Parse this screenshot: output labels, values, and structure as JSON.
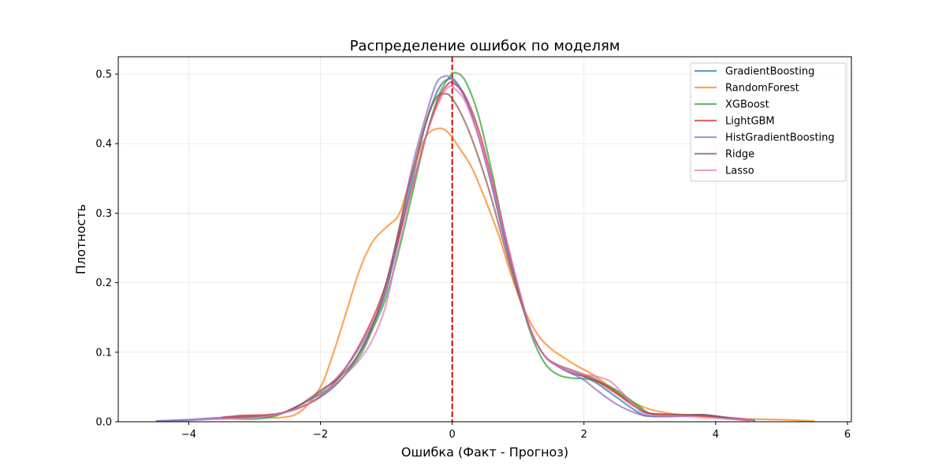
{
  "chart_data": {
    "type": "line",
    "title": "Распределение ошибок по моделям",
    "xlabel": "Ошибка (Факт - Прогноз)",
    "ylabel": "Плотность",
    "xlim": [
      -5.07,
      6.06
    ],
    "ylim": [
      0,
      0.525
    ],
    "xticks": [
      -4,
      -2,
      0,
      2,
      4,
      6
    ],
    "xtick_labels": [
      "−4",
      "−2",
      "0",
      "2",
      "4",
      "6"
    ],
    "yticks": [
      0.0,
      0.1,
      0.2,
      0.3,
      0.4,
      0.5
    ],
    "ytick_labels": [
      "0.0",
      "0.1",
      "0.2",
      "0.3",
      "0.4",
      "0.5"
    ],
    "grid": true,
    "legend_position": "top-right",
    "reference_line": {
      "x": 0,
      "color": "#e00000",
      "style": "dashed"
    },
    "series": [
      {
        "name": "GradientBoosting",
        "color": "#1f77b4",
        "points": [
          [
            -4.5,
            0.001
          ],
          [
            -4.0,
            0.003
          ],
          [
            -3.5,
            0.006
          ],
          [
            -3.0,
            0.008
          ],
          [
            -2.6,
            0.012
          ],
          [
            -2.2,
            0.025
          ],
          [
            -1.8,
            0.05
          ],
          [
            -1.5,
            0.085
          ],
          [
            -1.2,
            0.14
          ],
          [
            -1.0,
            0.19
          ],
          [
            -0.8,
            0.27
          ],
          [
            -0.6,
            0.35
          ],
          [
            -0.4,
            0.43
          ],
          [
            -0.2,
            0.48
          ],
          [
            -0.05,
            0.493
          ],
          [
            0.05,
            0.49
          ],
          [
            0.2,
            0.465
          ],
          [
            0.4,
            0.41
          ],
          [
            0.6,
            0.34
          ],
          [
            0.8,
            0.26
          ],
          [
            1.0,
            0.19
          ],
          [
            1.2,
            0.13
          ],
          [
            1.4,
            0.095
          ],
          [
            1.6,
            0.08
          ],
          [
            1.8,
            0.07
          ],
          [
            2.0,
            0.065
          ],
          [
            2.2,
            0.055
          ],
          [
            2.5,
            0.035
          ],
          [
            2.8,
            0.015
          ],
          [
            3.0,
            0.008
          ],
          [
            3.5,
            0.008
          ],
          [
            3.8,
            0.01
          ],
          [
            4.2,
            0.005
          ],
          [
            4.6,
            0.002
          ]
        ]
      },
      {
        "name": "RandomForest",
        "color": "#ff7f0e",
        "points": [
          [
            -3.5,
            0.005
          ],
          [
            -3.0,
            0.007
          ],
          [
            -2.6,
            0.006
          ],
          [
            -2.3,
            0.015
          ],
          [
            -2.0,
            0.05
          ],
          [
            -1.8,
            0.1
          ],
          [
            -1.6,
            0.16
          ],
          [
            -1.4,
            0.22
          ],
          [
            -1.2,
            0.26
          ],
          [
            -1.0,
            0.28
          ],
          [
            -0.8,
            0.3
          ],
          [
            -0.6,
            0.36
          ],
          [
            -0.4,
            0.41
          ],
          [
            -0.2,
            0.422
          ],
          [
            -0.05,
            0.415
          ],
          [
            0.1,
            0.395
          ],
          [
            0.3,
            0.365
          ],
          [
            0.5,
            0.32
          ],
          [
            0.7,
            0.27
          ],
          [
            0.9,
            0.21
          ],
          [
            1.1,
            0.16
          ],
          [
            1.3,
            0.125
          ],
          [
            1.5,
            0.105
          ],
          [
            1.7,
            0.092
          ],
          [
            1.9,
            0.08
          ],
          [
            2.1,
            0.07
          ],
          [
            2.4,
            0.05
          ],
          [
            2.7,
            0.03
          ],
          [
            3.0,
            0.018
          ],
          [
            3.3,
            0.012
          ],
          [
            3.6,
            0.009
          ],
          [
            4.0,
            0.007
          ],
          [
            4.5,
            0.004
          ],
          [
            5.0,
            0.003
          ],
          [
            5.5,
            0.001
          ]
        ]
      },
      {
        "name": "XGBoost",
        "color": "#2ca02c",
        "points": [
          [
            -3.5,
            0.005
          ],
          [
            -3.0,
            0.004
          ],
          [
            -2.7,
            0.008
          ],
          [
            -2.4,
            0.02
          ],
          [
            -2.0,
            0.04
          ],
          [
            -1.7,
            0.06
          ],
          [
            -1.4,
            0.095
          ],
          [
            -1.2,
            0.135
          ],
          [
            -1.0,
            0.18
          ],
          [
            -0.8,
            0.25
          ],
          [
            -0.6,
            0.33
          ],
          [
            -0.4,
            0.41
          ],
          [
            -0.2,
            0.47
          ],
          [
            -0.05,
            0.495
          ],
          [
            0.05,
            0.502
          ],
          [
            0.2,
            0.49
          ],
          [
            0.4,
            0.44
          ],
          [
            0.6,
            0.36
          ],
          [
            0.8,
            0.27
          ],
          [
            1.0,
            0.19
          ],
          [
            1.2,
            0.125
          ],
          [
            1.4,
            0.085
          ],
          [
            1.6,
            0.068
          ],
          [
            1.8,
            0.063
          ],
          [
            2.0,
            0.062
          ],
          [
            2.2,
            0.058
          ],
          [
            2.5,
            0.045
          ],
          [
            2.8,
            0.025
          ],
          [
            3.0,
            0.012
          ],
          [
            3.3,
            0.008
          ],
          [
            3.8,
            0.01
          ],
          [
            4.3,
            0.004
          ]
        ]
      },
      {
        "name": "LightGBM",
        "color": "#d62728",
        "points": [
          [
            -3.5,
            0.006
          ],
          [
            -3.2,
            0.009
          ],
          [
            -2.8,
            0.01
          ],
          [
            -2.5,
            0.015
          ],
          [
            -2.1,
            0.03
          ],
          [
            -1.8,
            0.055
          ],
          [
            -1.5,
            0.095
          ],
          [
            -1.2,
            0.15
          ],
          [
            -1.0,
            0.2
          ],
          [
            -0.8,
            0.27
          ],
          [
            -0.6,
            0.34
          ],
          [
            -0.4,
            0.41
          ],
          [
            -0.2,
            0.465
          ],
          [
            -0.05,
            0.487
          ],
          [
            0.05,
            0.485
          ],
          [
            0.2,
            0.468
          ],
          [
            0.4,
            0.42
          ],
          [
            0.6,
            0.35
          ],
          [
            0.8,
            0.27
          ],
          [
            1.0,
            0.195
          ],
          [
            1.2,
            0.13
          ],
          [
            1.4,
            0.095
          ],
          [
            1.6,
            0.08
          ],
          [
            1.8,
            0.072
          ],
          [
            2.0,
            0.066
          ],
          [
            2.2,
            0.058
          ],
          [
            2.5,
            0.04
          ],
          [
            2.8,
            0.02
          ],
          [
            3.0,
            0.012
          ],
          [
            3.5,
            0.01
          ],
          [
            4.0,
            0.007
          ],
          [
            4.5,
            0.002
          ]
        ]
      },
      {
        "name": "HistGradientBoosting",
        "color": "#9467bd",
        "points": [
          [
            -4.5,
            0.001
          ],
          [
            -4.0,
            0.002
          ],
          [
            -3.5,
            0.005
          ],
          [
            -3.0,
            0.007
          ],
          [
            -2.6,
            0.012
          ],
          [
            -2.2,
            0.03
          ],
          [
            -1.9,
            0.05
          ],
          [
            -1.6,
            0.08
          ],
          [
            -1.3,
            0.125
          ],
          [
            -1.0,
            0.19
          ],
          [
            -0.8,
            0.28
          ],
          [
            -0.6,
            0.37
          ],
          [
            -0.4,
            0.44
          ],
          [
            -0.25,
            0.485
          ],
          [
            -0.12,
            0.497
          ],
          [
            0.0,
            0.492
          ],
          [
            0.2,
            0.465
          ],
          [
            0.4,
            0.41
          ],
          [
            0.6,
            0.34
          ],
          [
            0.8,
            0.26
          ],
          [
            1.0,
            0.19
          ],
          [
            1.2,
            0.13
          ],
          [
            1.4,
            0.095
          ],
          [
            1.6,
            0.08
          ],
          [
            1.8,
            0.07
          ],
          [
            2.0,
            0.06
          ],
          [
            2.2,
            0.045
          ],
          [
            2.5,
            0.025
          ],
          [
            2.8,
            0.012
          ],
          [
            3.0,
            0.008
          ],
          [
            3.5,
            0.008
          ],
          [
            3.8,
            0.01
          ],
          [
            4.2,
            0.006
          ],
          [
            4.6,
            0.002
          ]
        ]
      },
      {
        "name": "Ridge",
        "color": "#8c564b",
        "points": [
          [
            -3.3,
            0.006
          ],
          [
            -2.9,
            0.007
          ],
          [
            -2.6,
            0.012
          ],
          [
            -2.3,
            0.025
          ],
          [
            -2.0,
            0.045
          ],
          [
            -1.7,
            0.065
          ],
          [
            -1.4,
            0.1
          ],
          [
            -1.2,
            0.14
          ],
          [
            -1.0,
            0.2
          ],
          [
            -0.8,
            0.28
          ],
          [
            -0.6,
            0.36
          ],
          [
            -0.4,
            0.43
          ],
          [
            -0.25,
            0.465
          ],
          [
            -0.12,
            0.472
          ],
          [
            0.0,
            0.465
          ],
          [
            0.2,
            0.43
          ],
          [
            0.4,
            0.38
          ],
          [
            0.6,
            0.32
          ],
          [
            0.8,
            0.25
          ],
          [
            1.0,
            0.185
          ],
          [
            1.2,
            0.13
          ],
          [
            1.4,
            0.095
          ],
          [
            1.6,
            0.082
          ],
          [
            1.8,
            0.075
          ],
          [
            2.0,
            0.068
          ],
          [
            2.2,
            0.06
          ],
          [
            2.5,
            0.042
          ],
          [
            2.8,
            0.022
          ],
          [
            3.0,
            0.012
          ],
          [
            3.5,
            0.01
          ],
          [
            3.8,
            0.01
          ],
          [
            4.2,
            0.005
          ]
        ]
      },
      {
        "name": "Lasso",
        "color": "#e377c2",
        "points": [
          [
            -4.0,
            0.003
          ],
          [
            -3.5,
            0.004
          ],
          [
            -3.0,
            0.006
          ],
          [
            -2.6,
            0.012
          ],
          [
            -2.2,
            0.025
          ],
          [
            -1.9,
            0.045
          ],
          [
            -1.6,
            0.07
          ],
          [
            -1.4,
            0.09
          ],
          [
            -1.2,
            0.12
          ],
          [
            -1.0,
            0.17
          ],
          [
            -0.8,
            0.26
          ],
          [
            -0.6,
            0.34
          ],
          [
            -0.4,
            0.41
          ],
          [
            -0.2,
            0.46
          ],
          [
            -0.05,
            0.482
          ],
          [
            0.05,
            0.478
          ],
          [
            0.2,
            0.46
          ],
          [
            0.4,
            0.41
          ],
          [
            0.6,
            0.345
          ],
          [
            0.8,
            0.27
          ],
          [
            1.0,
            0.195
          ],
          [
            1.2,
            0.13
          ],
          [
            1.4,
            0.095
          ],
          [
            1.6,
            0.08
          ],
          [
            1.8,
            0.072
          ],
          [
            2.0,
            0.068
          ],
          [
            2.2,
            0.065
          ],
          [
            2.4,
            0.058
          ],
          [
            2.6,
            0.04
          ],
          [
            2.8,
            0.02
          ],
          [
            3.0,
            0.01
          ],
          [
            3.5,
            0.008
          ],
          [
            4.0,
            0.005
          ],
          [
            4.5,
            0.002
          ]
        ]
      }
    ]
  }
}
